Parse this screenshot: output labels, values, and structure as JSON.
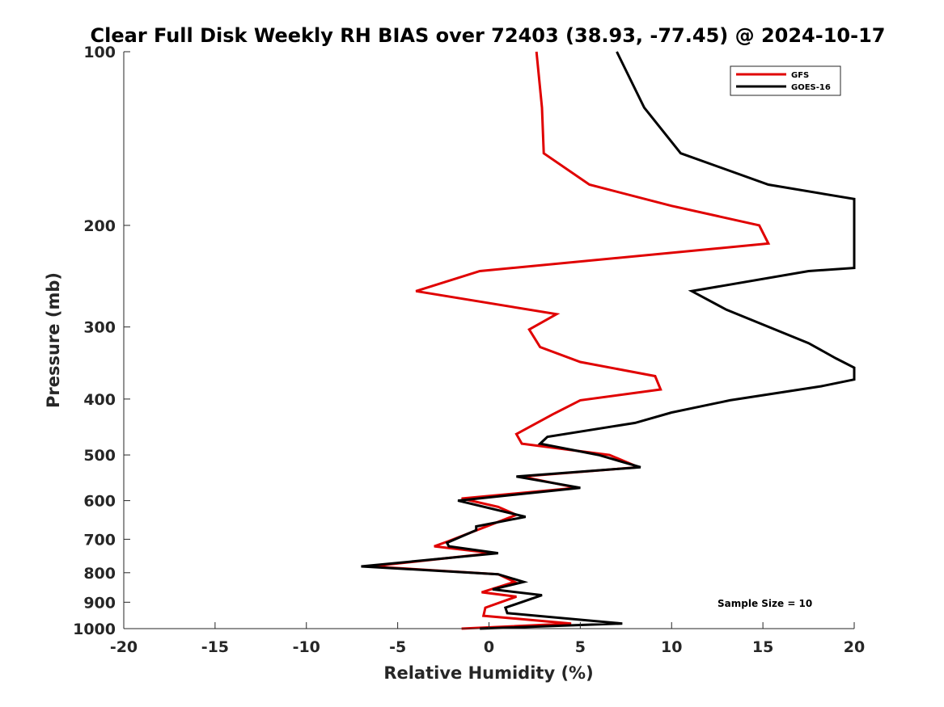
{
  "chart_data": {
    "type": "line",
    "title": "Clear Full Disk Weekly RH BIAS over 72403 (38.93, -77.45) @ 2024-10-17",
    "xlabel": "Relative Humidity (%)",
    "ylabel": "Pressure (mb)",
    "xlim": [
      -20,
      20
    ],
    "ylim": [
      100,
      1000
    ],
    "y_scale": "log",
    "y_reversed": true,
    "x_ticks": [
      "-20",
      "-15",
      "-10",
      "-5",
      "0",
      "5",
      "10",
      "15",
      "20"
    ],
    "y_ticks": [
      "100",
      "200",
      "300",
      "400",
      "500",
      "600",
      "700",
      "800",
      "900",
      "1000"
    ],
    "grid": false,
    "legend_position": "top-right",
    "annotation": "Sample Size = 10",
    "series": [
      {
        "name": "GFS",
        "color": "#e00000",
        "points": [
          [
            2.6,
            100
          ],
          [
            2.9,
            125
          ],
          [
            3.0,
            150
          ],
          [
            5.5,
            170
          ],
          [
            10.0,
            185
          ],
          [
            14.8,
            200
          ],
          [
            15.3,
            215
          ],
          [
            -0.5,
            240
          ],
          [
            -4.0,
            260
          ],
          [
            3.7,
            285
          ],
          [
            2.2,
            303
          ],
          [
            2.8,
            325
          ],
          [
            5.0,
            345
          ],
          [
            9.1,
            365
          ],
          [
            9.4,
            385
          ],
          [
            5.0,
            402
          ],
          [
            3.5,
            425
          ],
          [
            1.5,
            460
          ],
          [
            1.8,
            478
          ],
          [
            6.6,
            500
          ],
          [
            8.2,
            525
          ],
          [
            1.8,
            545
          ],
          [
            4.8,
            570
          ],
          [
            -1.5,
            595
          ],
          [
            0.5,
            615
          ],
          [
            1.5,
            635
          ],
          [
            -0.4,
            670
          ],
          [
            -2.2,
            705
          ],
          [
            -3.0,
            720
          ],
          [
            0.2,
            740
          ],
          [
            -6.5,
            780
          ],
          [
            0.5,
            805
          ],
          [
            1.4,
            830
          ],
          [
            -0.4,
            865
          ],
          [
            1.5,
            880
          ],
          [
            -0.2,
            920
          ],
          [
            -0.3,
            950
          ],
          [
            4.5,
            980
          ],
          [
            -1.5,
            1000
          ]
        ]
      },
      {
        "name": "GOES-16",
        "color": "#000000",
        "points": [
          [
            7.0,
            100
          ],
          [
            8.5,
            125
          ],
          [
            10.5,
            150
          ],
          [
            15.3,
            170
          ],
          [
            20.0,
            180
          ],
          [
            20.0,
            237
          ],
          [
            17.5,
            240
          ],
          [
            11.1,
            260
          ],
          [
            13.0,
            280
          ],
          [
            17.5,
            320
          ],
          [
            19.0,
            340
          ],
          [
            20.0,
            353
          ],
          [
            20.0,
            370
          ],
          [
            18.2,
            380
          ],
          [
            13.2,
            402
          ],
          [
            10.0,
            422
          ],
          [
            8.0,
            440
          ],
          [
            3.2,
            465
          ],
          [
            2.8,
            478
          ],
          [
            6.0,
            500
          ],
          [
            8.3,
            525
          ],
          [
            1.5,
            545
          ],
          [
            5.0,
            570
          ],
          [
            -1.7,
            600
          ],
          [
            2.0,
            640
          ],
          [
            -0.7,
            665
          ],
          [
            -0.7,
            675
          ],
          [
            -2.3,
            710
          ],
          [
            -2.2,
            720
          ],
          [
            0.5,
            740
          ],
          [
            -7.0,
            780
          ],
          [
            0.5,
            805
          ],
          [
            1.9,
            830
          ],
          [
            0.2,
            855
          ],
          [
            2.9,
            875
          ],
          [
            0.9,
            920
          ],
          [
            1.0,
            940
          ],
          [
            7.3,
            980
          ],
          [
            -0.5,
            1000
          ]
        ]
      }
    ]
  }
}
